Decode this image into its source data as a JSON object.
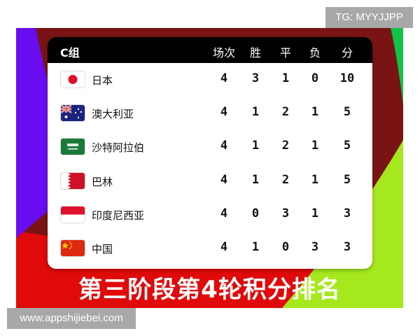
{
  "watermarks": {
    "tg": "TG: MYYJJPP",
    "site": "www.appshijiebei.com"
  },
  "table": {
    "group": "C组",
    "headers": [
      "场次",
      "胜",
      "平",
      "负",
      "分"
    ],
    "rows": [
      {
        "team": "日本",
        "flag": "japan-flag",
        "played": "4",
        "won": "3",
        "drawn": "1",
        "lost": "0",
        "points": "10"
      },
      {
        "team": "澳大利亚",
        "flag": "australia-flag",
        "played": "4",
        "won": "1",
        "drawn": "2",
        "lost": "1",
        "points": "5"
      },
      {
        "team": "沙特阿拉伯",
        "flag": "saudi-arabia-flag",
        "played": "4",
        "won": "1",
        "drawn": "2",
        "lost": "1",
        "points": "5"
      },
      {
        "team": "巴林",
        "flag": "bahrain-flag",
        "played": "4",
        "won": "1",
        "drawn": "2",
        "lost": "1",
        "points": "5"
      },
      {
        "team": "印度尼西亚",
        "flag": "indonesia-flag",
        "played": "4",
        "won": "0",
        "drawn": "3",
        "lost": "1",
        "points": "3"
      },
      {
        "team": "中国",
        "flag": "china-flag",
        "played": "4",
        "won": "1",
        "drawn": "0",
        "lost": "3",
        "points": "3"
      }
    ]
  },
  "caption": "第三阶段第4轮积分排名",
  "colors": {
    "background_red": "#e00a0a",
    "dark_red": "#7a1414",
    "purple": "#6a0cf0",
    "lime": "#a6e81e",
    "green": "#12c34a"
  }
}
